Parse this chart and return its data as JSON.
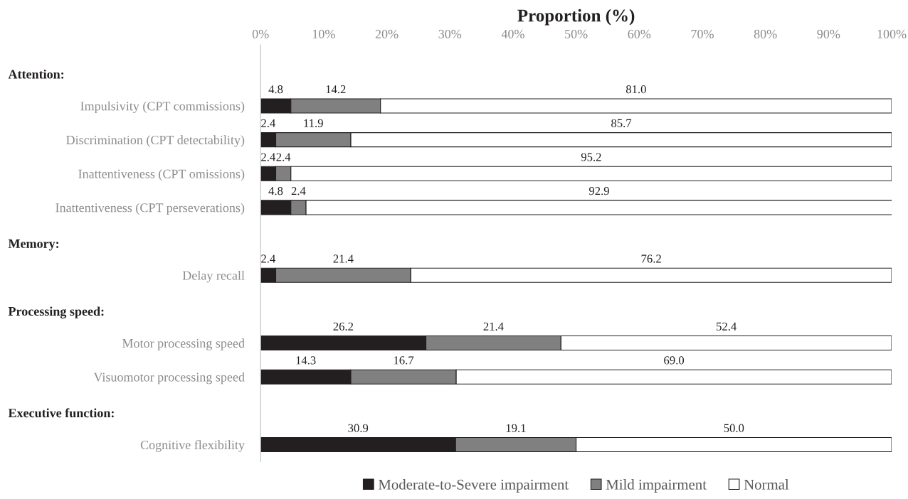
{
  "chart_data": {
    "type": "bar",
    "orientation": "horizontal",
    "stacked": true,
    "xlabel": "Proportion (%)",
    "categories": [
      null,
      "Impulsivity (CPT commissions)",
      "Discrimination (CPT detectability)",
      "Inattentiveness (CPT omissions)",
      "Inattentiveness (CPT perseverations)",
      null,
      "Delay recall",
      null,
      "Motor processing speed",
      "Visuomotor processing speed",
      null,
      "Cognitive flexibility"
    ],
    "annotations": [
      "Attention:",
      "Memory:",
      "Processing speed:",
      "Executive function:"
    ],
    "series": [
      {
        "name": "Moderate-to-Severe impairment",
        "color": "#231f20",
        "values": [
          null,
          4.8,
          2.4,
          2.4,
          4.8,
          null,
          2.4,
          null,
          26.2,
          14.3,
          null,
          30.9
        ],
        "value_labels": [
          null,
          "4.8",
          "2.4",
          "2.4",
          "4.8",
          null,
          "2.4",
          null,
          "26.2",
          "14.3",
          null,
          "30.9"
        ]
      },
      {
        "name": "Mild impairment",
        "color": "#808080",
        "values": [
          null,
          14.2,
          11.9,
          2.4,
          2.4,
          null,
          21.4,
          null,
          21.4,
          16.7,
          null,
          19.1
        ],
        "value_labels": [
          null,
          "14.2",
          "11.9",
          "2.4",
          "2.4",
          null,
          "21.4",
          null,
          "21.4",
          "16.7",
          null,
          "19.1"
        ]
      },
      {
        "name": "Normal",
        "color": "#ffffff",
        "values": [
          null,
          81.0,
          85.7,
          95.2,
          92.9,
          null,
          76.2,
          null,
          52.4,
          69.0,
          null,
          50.0
        ],
        "value_labels": [
          null,
          "81.0",
          "85.7",
          "95.2",
          "92.9",
          null,
          "76.2",
          null,
          "52.4",
          "69.0",
          null,
          "50.0"
        ]
      }
    ],
    "xlim": [
      0,
      100
    ],
    "xticks": [
      {
        "value": 0,
        "label": "0%"
      },
      {
        "value": 10,
        "label": "10%"
      },
      {
        "value": 20,
        "label": "20%"
      },
      {
        "value": 30,
        "label": "30%"
      },
      {
        "value": 40,
        "label": "40%"
      },
      {
        "value": 50,
        "label": "50%"
      },
      {
        "value": 60,
        "label": "60%"
      },
      {
        "value": 70,
        "label": "70%"
      },
      {
        "value": 80,
        "label": "80%"
      },
      {
        "value": 90,
        "label": "90%"
      },
      {
        "value": 100,
        "label": "100%"
      }
    ],
    "grid": false,
    "legend": "bottom"
  }
}
